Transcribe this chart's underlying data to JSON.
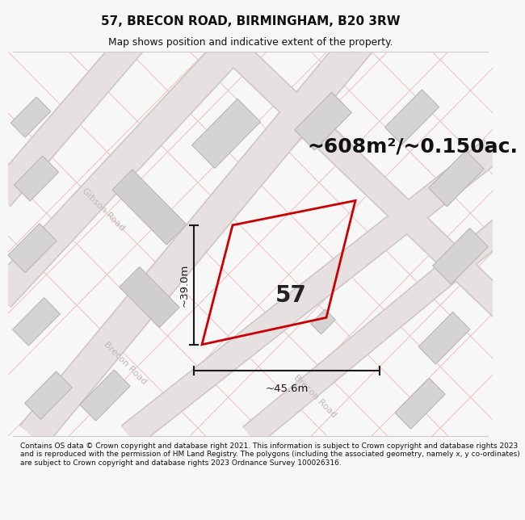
{
  "title": "57, BRECON ROAD, BIRMINGHAM, B20 3RW",
  "subtitle": "Map shows position and indicative extent of the property.",
  "area_label": "~608m²/~0.150ac.",
  "property_number": "57",
  "dim_height": "~39.0m",
  "dim_width": "~45.6m",
  "footer": "Contains OS data © Crown copyright and database right 2021. This information is subject to Crown copyright and database rights 2023 and is reproduced with the permission of HM Land Registry. The polygons (including the associated geometry, namely x, y co-ordinates) are subject to Crown copyright and database rights 2023 Ordnance Survey 100026316.",
  "bg_color": "#f7f7f7",
  "map_bg": "#f0eeee",
  "road_fill": "#e6e0e0",
  "road_edge": "#cfc8c8",
  "block_fill": "#d5d3d3",
  "block_edge": "#b8b6b6",
  "property_color": "#cc0000",
  "dim_color": "#1a1a1a",
  "title_color": "#111111",
  "road_label_color": "#c0b8b8",
  "light_line_color": "#f0c0c0",
  "sep_line_color": "#cccccc"
}
